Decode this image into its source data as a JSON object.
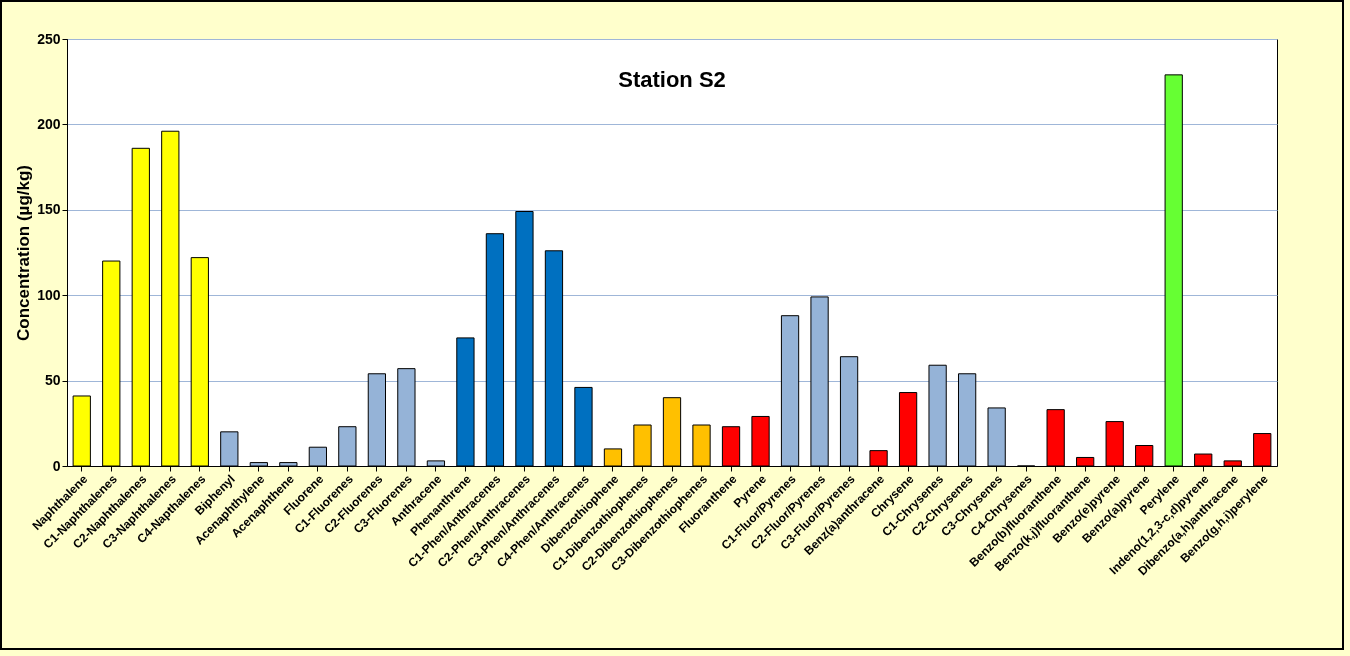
{
  "chart_data": {
    "type": "bar",
    "title": "Station S2",
    "ylabel": "Concentration (µg/kg)",
    "categories": [
      "Naphthalene",
      "C1-Naphthalenes",
      "C2-Naphthalenes",
      "C3-Naphthalenes",
      "C4-Napthalenes",
      "Biphenyl",
      "Acenaphthylene",
      "Acenaphthene",
      "Fluorene",
      "C1-Fluorenes",
      "C2-Fluorenes",
      "C3-Fluorenes",
      "Anthracene",
      "Phenanthrene",
      "C1-Phen/Anthracenes",
      "C2-Phen/Anthracenes",
      "C3-Phen/Anthracenes",
      "C4-Phen/Anthracenes",
      "Dibenzothiophene",
      "C1-Dibenzothiophenes",
      "C2-Dibenzothiophenes",
      "C3-Dibenzothiophenes",
      "Fluoranthene",
      "Pyrene",
      "C1-Fluor/Pyrenes",
      "C2-Fluor/Pyrenes",
      "C3-Fluor/Pyrenes",
      "Benz(a)anthracene",
      "Chrysene",
      "C1-Chrysenes",
      "C2-Chrysenes",
      "C3-Chrysenes",
      "C4-Chrysenes",
      "Benzo(b)fluoranthene",
      "Benzo(k,j)fluoranthene",
      "Benzo(e)pyrene",
      "Benzo(a)pyrene",
      "Perylene",
      "Indeno(1,2,3-c,d)pyrene",
      "Dibenzo(a,h)anthracene",
      "Benzo(g,h,i)perylene"
    ],
    "values": [
      41,
      120,
      186,
      196,
      122,
      20,
      2,
      2,
      11,
      23,
      54,
      57,
      3,
      75,
      136,
      149,
      126,
      46,
      10,
      24,
      40,
      24,
      23,
      29,
      88,
      99,
      64,
      9,
      43,
      59,
      54,
      34,
      0,
      33,
      5,
      26,
      12,
      229,
      7,
      3,
      19
    ],
    "colors": [
      "#ffff00",
      "#ffff00",
      "#ffff00",
      "#ffff00",
      "#ffff00",
      "#95b3d7",
      "#95b3d7",
      "#95b3d7",
      "#95b3d7",
      "#95b3d7",
      "#95b3d7",
      "#95b3d7",
      "#95b3d7",
      "#0070c0",
      "#0070c0",
      "#0070c0",
      "#0070c0",
      "#0070c0",
      "#ffc000",
      "#ffc000",
      "#ffc000",
      "#ffc000",
      "#ff0000",
      "#ff0000",
      "#95b3d7",
      "#95b3d7",
      "#95b3d7",
      "#ff0000",
      "#ff0000",
      "#95b3d7",
      "#95b3d7",
      "#95b3d7",
      "#95b3d7",
      "#ff0000",
      "#ff0000",
      "#ff0000",
      "#ff0000",
      "#66ff33",
      "#ff0000",
      "#ff0000",
      "#ff0000"
    ],
    "ylim": [
      0,
      250
    ],
    "yticks": [
      0,
      50,
      100,
      150,
      200,
      250
    ],
    "grid": "y"
  }
}
